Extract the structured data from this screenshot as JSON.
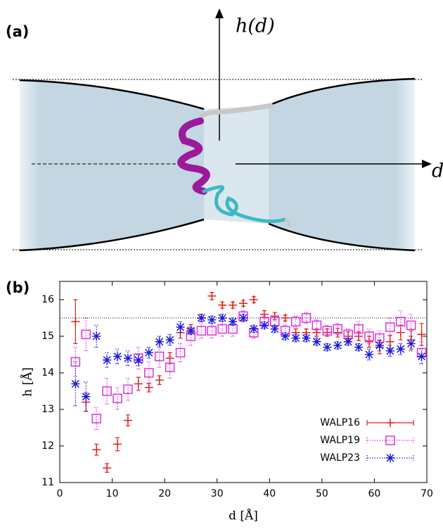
{
  "diagram": {
    "label": "(a)",
    "vertical_axis": "h(d)",
    "horizontal_axis": "d"
  },
  "chart_data": {
    "type": "scatter",
    "panel_label": "(b)",
    "xlabel": "d [Å]",
    "ylabel": "h [Å]",
    "xlim": [
      0,
      70
    ],
    "ylim": [
      11,
      16.5
    ],
    "xticks": [
      0,
      10,
      20,
      30,
      40,
      50,
      60,
      70
    ],
    "yticks": [
      11,
      12,
      13,
      14,
      15,
      16
    ],
    "hline": 15.5,
    "legend": "lower right",
    "x": [
      3,
      5,
      7,
      9,
      11,
      13,
      15,
      17,
      19,
      21,
      23,
      25,
      27,
      29,
      31,
      33,
      35,
      37,
      39,
      41,
      43,
      45,
      47,
      49,
      51,
      53,
      55,
      57,
      59,
      61,
      63,
      65,
      67,
      69
    ],
    "series": [
      {
        "name": "WALP16",
        "color": "#e0201b",
        "marker": "plus",
        "linestyle": "solid",
        "values": [
          15.4,
          13.2,
          11.9,
          11.4,
          12.05,
          12.7,
          13.7,
          13.6,
          13.8,
          14.4,
          15.1,
          15.2,
          15.5,
          16.1,
          15.85,
          15.85,
          15.9,
          16.0,
          15.6,
          15.55,
          15.5,
          15.1,
          15.1,
          15.1,
          15.1,
          15.1,
          15.0,
          15.0,
          14.85,
          14.7,
          14.85,
          15.1,
          14.9,
          15.05
        ],
        "errors": [
          0.6,
          0.25,
          0.15,
          0.12,
          0.18,
          0.15,
          0.18,
          0.12,
          0.12,
          0.15,
          0.15,
          0.12,
          0.1,
          0.1,
          0.08,
          0.08,
          0.08,
          0.08,
          0.1,
          0.1,
          0.08,
          0.1,
          0.1,
          0.1,
          0.1,
          0.12,
          0.12,
          0.12,
          0.15,
          0.18,
          0.18,
          0.2,
          0.25,
          0.3
        ]
      },
      {
        "name": "WALP19",
        "color": "#e030e0",
        "marker": "square",
        "linestyle": "dotted",
        "values": [
          14.3,
          15.05,
          12.75,
          13.5,
          13.3,
          13.55,
          14.4,
          14.0,
          14.45,
          14.15,
          14.55,
          15.0,
          15.15,
          15.15,
          15.2,
          15.2,
          15.55,
          15.1,
          15.4,
          15.4,
          15.15,
          15.4,
          15.5,
          15.3,
          15.15,
          15.2,
          15.05,
          15.2,
          15.0,
          14.95,
          15.25,
          15.4,
          15.3,
          14.55
        ],
        "errors": [
          0.4,
          0.45,
          0.3,
          0.35,
          0.3,
          0.3,
          0.3,
          0.3,
          0.3,
          0.3,
          0.25,
          0.25,
          0.2,
          0.2,
          0.2,
          0.2,
          0.15,
          0.15,
          0.15,
          0.15,
          0.15,
          0.15,
          0.15,
          0.15,
          0.15,
          0.15,
          0.15,
          0.2,
          0.2,
          0.2,
          0.25,
          0.3,
          0.3,
          0.3
        ]
      },
      {
        "name": "WALP23",
        "color": "#1a1ae0",
        "marker": "asterisk",
        "linestyle": "dotted",
        "values": [
          13.7,
          13.35,
          15.0,
          14.35,
          14.45,
          14.4,
          14.35,
          14.55,
          14.85,
          14.9,
          15.25,
          15.15,
          15.5,
          15.45,
          15.5,
          15.4,
          15.5,
          15.2,
          15.3,
          15.2,
          15.0,
          14.95,
          14.95,
          14.85,
          14.7,
          14.75,
          14.85,
          14.7,
          14.5,
          14.75,
          14.6,
          14.65,
          14.8,
          14.45
        ],
        "errors": [
          0.6,
          0.4,
          0.3,
          0.2,
          0.2,
          0.2,
          0.15,
          0.15,
          0.15,
          0.15,
          0.15,
          0.1,
          0.1,
          0.1,
          0.1,
          0.1,
          0.1,
          0.1,
          0.1,
          0.1,
          0.1,
          0.1,
          0.1,
          0.1,
          0.1,
          0.1,
          0.1,
          0.1,
          0.15,
          0.15,
          0.15,
          0.15,
          0.2,
          0.2
        ]
      }
    ]
  }
}
